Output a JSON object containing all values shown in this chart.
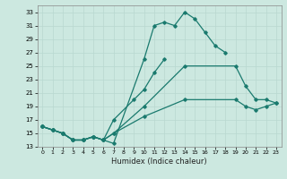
{
  "xlabel": "Humidex (Indice chaleur)",
  "bg_color": "#cce8e0",
  "line_color": "#1a7a6e",
  "grid_color": "#b8d8d0",
  "xlim": [
    -0.5,
    23.5
  ],
  "ylim": [
    13,
    34
  ],
  "xticks": [
    0,
    1,
    2,
    3,
    4,
    5,
    6,
    7,
    8,
    9,
    10,
    11,
    12,
    13,
    14,
    15,
    16,
    17,
    18,
    19,
    20,
    21,
    22,
    23
  ],
  "yticks": [
    13,
    15,
    17,
    19,
    21,
    23,
    25,
    27,
    29,
    31,
    33
  ],
  "line1_x": [
    0,
    1,
    2,
    3,
    4,
    5,
    6,
    7,
    10,
    11,
    12,
    13,
    14,
    15,
    16,
    17,
    18
  ],
  "line1_y": [
    16,
    15.5,
    15,
    14,
    14,
    14.5,
    14,
    13.5,
    26,
    31,
    31.5,
    31,
    33,
    32,
    30,
    28,
    27
  ],
  "line2_x": [
    0,
    1,
    2,
    3,
    4,
    5,
    6,
    7,
    9,
    10,
    11,
    12
  ],
  "line2_y": [
    16,
    15.5,
    15,
    14,
    14,
    14.5,
    14,
    17,
    20,
    21.5,
    24,
    26
  ],
  "line3_x": [
    0,
    1,
    2,
    3,
    4,
    5,
    6,
    7,
    10,
    14,
    19,
    20,
    21,
    22,
    23
  ],
  "line3_y": [
    16,
    15.5,
    15,
    14,
    14,
    14.5,
    14,
    15,
    19,
    25,
    25,
    22,
    20,
    20,
    19.5
  ],
  "line4_x": [
    0,
    1,
    2,
    3,
    4,
    5,
    6,
    7,
    10,
    14,
    19,
    20,
    21,
    22,
    23
  ],
  "line4_y": [
    16,
    15.5,
    15,
    14,
    14,
    14.5,
    14,
    15,
    17.5,
    20,
    20,
    19,
    18.5,
    19,
    19.5
  ]
}
